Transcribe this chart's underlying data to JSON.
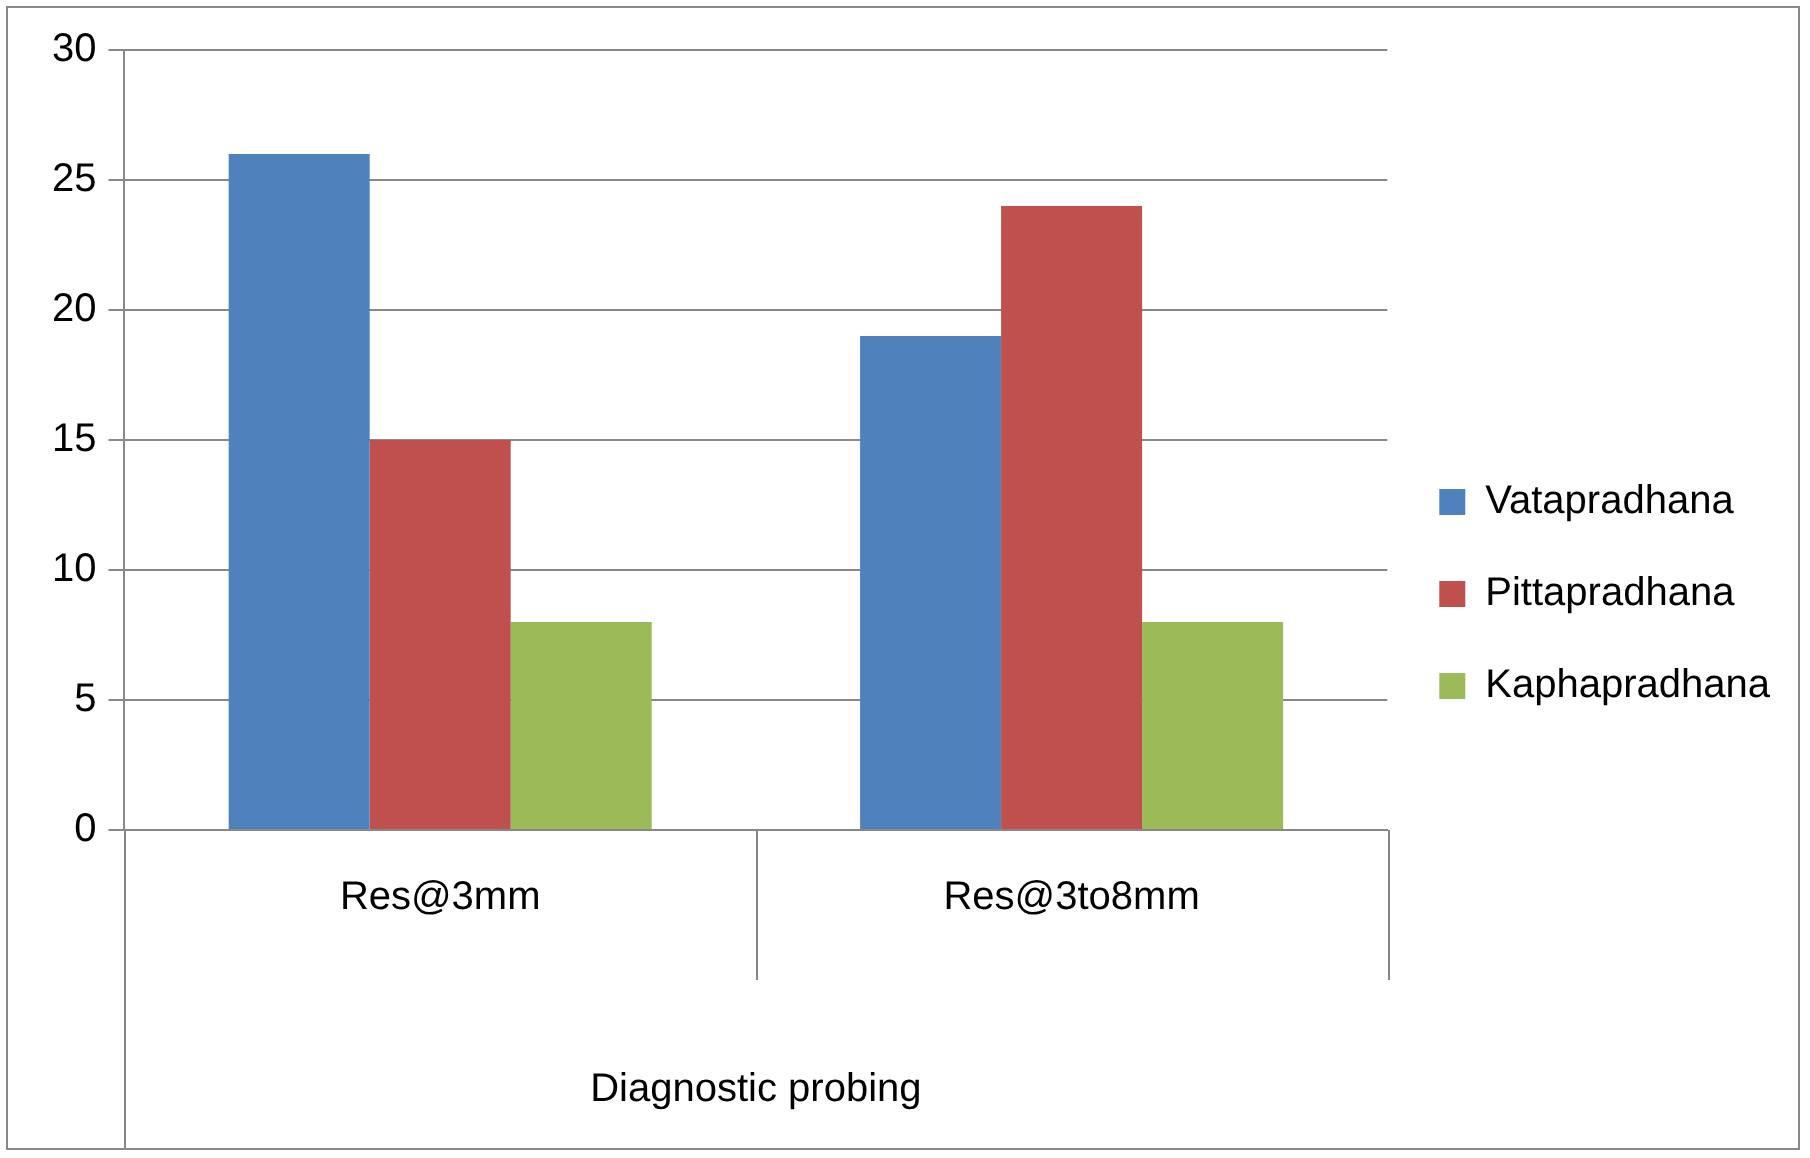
{
  "chart_data": {
    "type": "bar",
    "xlabel": "Diagnostic probing",
    "categories": [
      "Res@3mm",
      "Res@3to8mm"
    ],
    "series": [
      {
        "name": "Vatapradhana",
        "color": "#4f81bd",
        "values": [
          26,
          19
        ]
      },
      {
        "name": "Pittapradhana",
        "color": "#c0504d",
        "values": [
          15,
          24
        ]
      },
      {
        "name": "Kaphapradhana",
        "color": "#9bbb59",
        "values": [
          8,
          8
        ]
      }
    ],
    "ylim": [
      0,
      30
    ],
    "yticks": [
      0,
      5,
      10,
      15,
      20,
      25,
      30
    ],
    "grid": "y",
    "legend": "right"
  }
}
